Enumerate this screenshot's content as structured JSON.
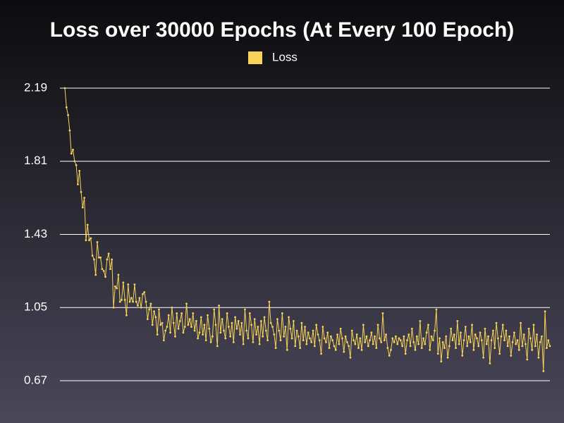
{
  "chart_data": {
    "type": "line",
    "title": "Loss over 30000 Epochs (At Every 100 Epoch)",
    "series": [
      {
        "name": "Loss",
        "color": "#f7d35a",
        "values": [
          2.19,
          2.09,
          2.05,
          1.97,
          1.85,
          1.87,
          1.81,
          1.79,
          1.69,
          1.76,
          1.65,
          1.57,
          1.62,
          1.4,
          1.48,
          1.4,
          1.41,
          1.32,
          1.3,
          1.22,
          1.39,
          1.31,
          1.31,
          1.25,
          1.24,
          1.21,
          1.3,
          1.33,
          1.25,
          1.3,
          1.05,
          1.16,
          1.15,
          1.22,
          1.08,
          1.09,
          1.18,
          1.09,
          1.01,
          1.17,
          1.08,
          1.1,
          1.08,
          1.17,
          1.08,
          1.06,
          1.1,
          1.05,
          1.12,
          1.13,
          1.08,
          0.99,
          1.04,
          1.07,
          0.96,
          1.03,
          1.0,
          0.91,
          1.04,
          0.96,
          0.97,
          0.88,
          0.93,
          0.95,
          1.01,
          0.92,
          1.05,
          0.97,
          0.9,
          1.02,
          0.94,
          0.98,
          1.02,
          0.92,
          0.95,
          1.07,
          0.96,
          0.99,
          0.95,
          1.02,
          0.93,
          0.98,
          0.89,
          0.92,
          1.0,
          0.91,
          0.96,
          0.88,
          1.01,
          0.94,
          0.87,
          0.9,
          1.04,
          0.96,
          0.85,
          1.06,
          0.92,
          0.99,
          0.93,
          0.89,
          1.02,
          0.95,
          0.9,
          0.97,
          0.87,
          1.0,
          0.94,
          0.98,
          0.91,
          0.97,
          0.86,
          1.04,
          0.93,
          0.89,
          1.02,
          0.96,
          0.87,
          0.99,
          0.91,
          0.95,
          0.86,
          0.98,
          0.9,
          1.0,
          0.93,
          0.88,
          1.08,
          0.97,
          0.95,
          0.91,
          0.84,
          0.99,
          0.93,
          0.88,
          1.02,
          0.9,
          0.95,
          0.83,
          1.0,
          0.94,
          0.89,
          0.98,
          0.85,
          0.93,
          0.9,
          0.84,
          0.97,
          0.88,
          0.95,
          0.86,
          0.92,
          0.89,
          0.87,
          0.93,
          0.85,
          0.96,
          0.91,
          0.88,
          0.81,
          0.95,
          0.89,
          0.87,
          0.92,
          0.84,
          0.9,
          0.88,
          0.85,
          0.83,
          0.91,
          0.86,
          0.94,
          0.89,
          0.82,
          0.9,
          0.87,
          0.85,
          0.79,
          0.93,
          0.88,
          0.86,
          0.91,
          0.84,
          0.89,
          0.83,
          0.96,
          0.87,
          0.9,
          0.85,
          0.88,
          0.92,
          0.86,
          0.9,
          0.84,
          0.96,
          0.89,
          0.87,
          1.02,
          0.88,
          0.91,
          0.84,
          0.8,
          0.83,
          0.89,
          0.87,
          0.9,
          0.86,
          0.89,
          0.88,
          0.85,
          0.9,
          0.81,
          0.88,
          0.91,
          0.85,
          0.94,
          0.87,
          0.83,
          0.9,
          0.86,
          0.98,
          0.84,
          0.89,
          0.86,
          0.92,
          0.96,
          0.83,
          0.9,
          0.88,
          0.93,
          1.04,
          0.81,
          0.89,
          0.77,
          0.87,
          0.84,
          0.9,
          0.79,
          0.85,
          0.94,
          0.88,
          0.91,
          0.84,
          0.98,
          0.86,
          0.92,
          0.8,
          0.88,
          0.95,
          0.85,
          0.9,
          0.87,
          0.96,
          0.83,
          0.91,
          0.89,
          0.85,
          0.92,
          0.88,
          0.79,
          0.94,
          0.86,
          0.9,
          0.76,
          0.88,
          0.93,
          0.84,
          0.97,
          0.89,
          0.81,
          0.9,
          0.96,
          0.88,
          0.93,
          0.85,
          0.9,
          0.8,
          0.87,
          0.92,
          0.86,
          0.88,
          0.83,
          0.97,
          0.85,
          0.91,
          0.86,
          0.78,
          0.94,
          0.89,
          0.83,
          0.96,
          0.85,
          0.91,
          0.79,
          0.87,
          0.9,
          0.72,
          1.03,
          0.84,
          0.88,
          0.85
        ]
      }
    ],
    "ylim": [
      0.67,
      2.19
    ],
    "yticks": [
      0.67,
      1.05,
      1.43,
      1.81,
      2.19
    ],
    "grid": true
  }
}
